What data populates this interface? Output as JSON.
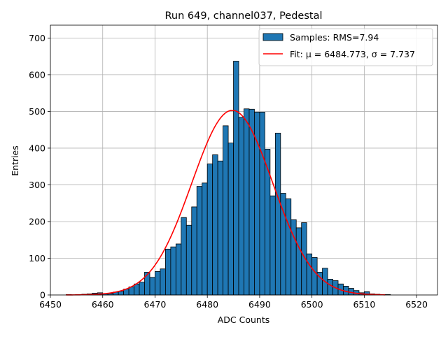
{
  "chart_data": {
    "type": "bar",
    "title": "Run 649, channel037, Pedestal",
    "xlabel": "ADC Counts",
    "ylabel": "Entries",
    "xlim": [
      6450,
      6524
    ],
    "ylim": [
      0,
      735
    ],
    "xticks": [
      6450,
      6460,
      6470,
      6480,
      6490,
      6500,
      6510,
      6520
    ],
    "yticks": [
      0,
      100,
      200,
      300,
      400,
      500,
      600,
      700
    ],
    "grid": true,
    "legend_position": "top-right",
    "bin_width": 1,
    "bin_edges_start": 6453,
    "series": [
      {
        "name": "Samples: RMS=7.94",
        "kind": "histogram",
        "color": "#1f77b4",
        "edgecolor": "#000000",
        "values": [
          1,
          0,
          1,
          2,
          3,
          5,
          6,
          3,
          4,
          8,
          10,
          16,
          22,
          30,
          35,
          62,
          48,
          64,
          71,
          125,
          131,
          139,
          211,
          190,
          240,
          296,
          305,
          357,
          382,
          365,
          461,
          414,
          637,
          484,
          507,
          506,
          498,
          498,
          397,
          270,
          441,
          277,
          262,
          205,
          183,
          197,
          112,
          102,
          62,
          73,
          43,
          39,
          30,
          24,
          18,
          12,
          6,
          9,
          3,
          2,
          1,
          1,
          0,
          0
        ]
      },
      {
        "name": "Fit: μ = 6484.773, σ = 7.737",
        "kind": "gaussian-fit",
        "color": "#ff0000",
        "mu": 6484.773,
        "sigma": 7.737,
        "amplitude": 503,
        "x_range": [
          6453,
          6514
        ]
      }
    ]
  }
}
